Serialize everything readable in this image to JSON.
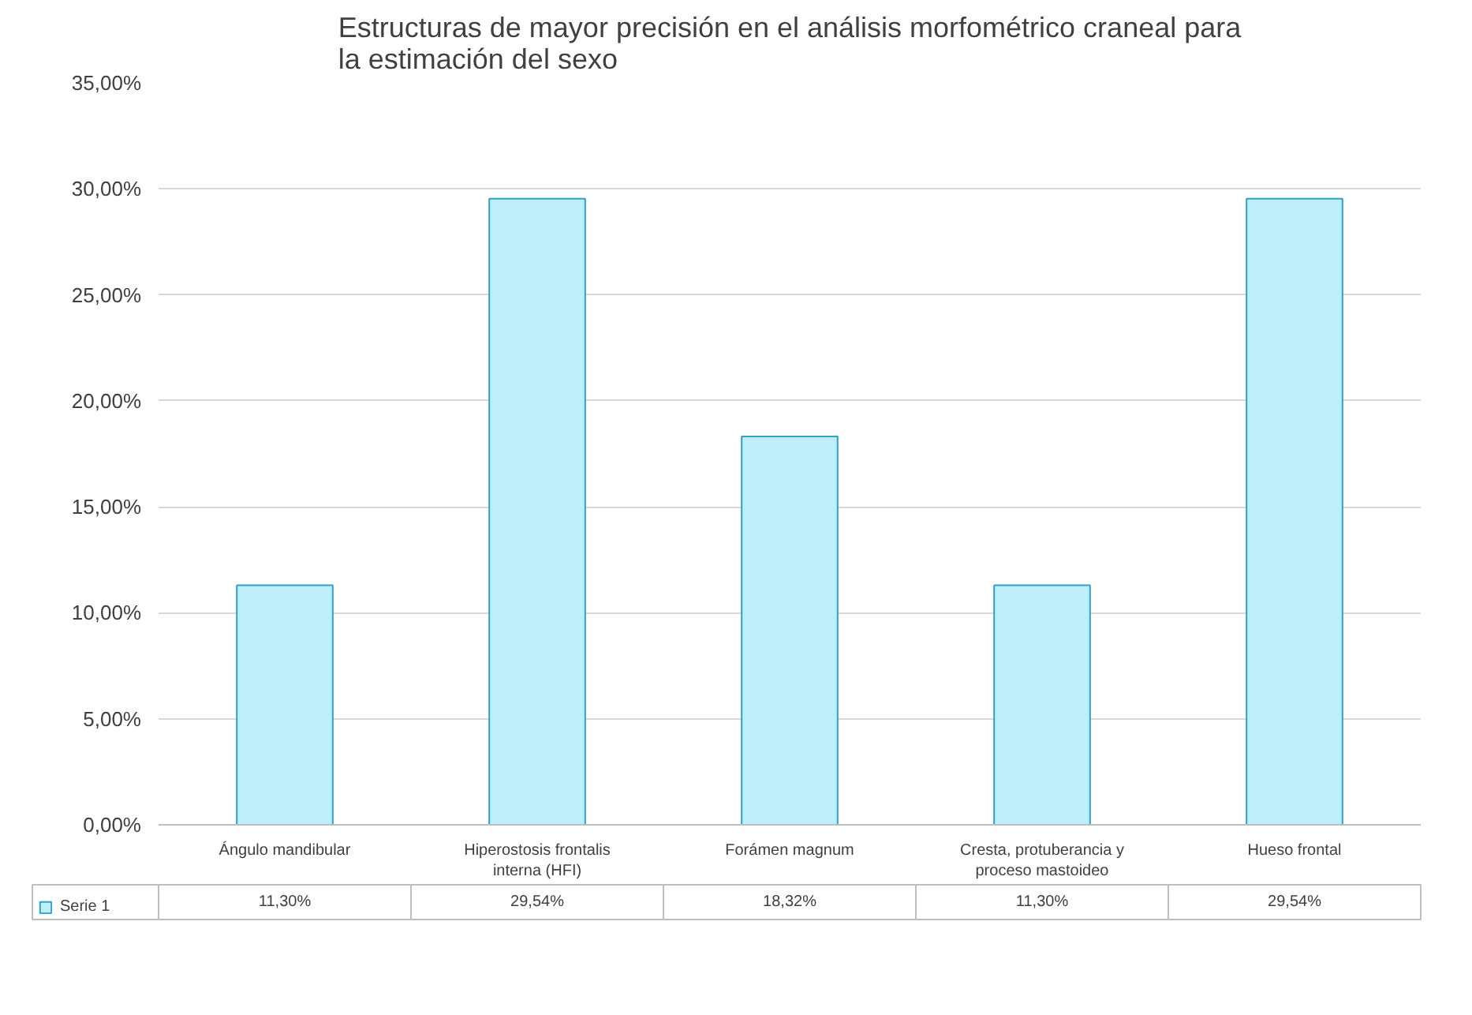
{
  "chart_data": {
    "type": "bar",
    "title": "Estructuras de mayor precisión en el análisis morfométrico craneal para\nla estimación del sexo",
    "categories": [
      "Ángulo mandibular",
      "Hiperostosis frontalis\ninterna (HFI)",
      "Forámen magnum",
      "Cresta, protuberancia y\nproceso mastoideo",
      "Hueso frontal"
    ],
    "series": [
      {
        "name": "Serie 1",
        "color": "#bdeefa",
        "values": [
          11.3,
          29.54,
          18.32,
          11.3,
          29.54
        ],
        "value_labels": [
          "11,30%",
          "29,54%",
          "18,32%",
          "11,30%",
          "29,54%"
        ]
      }
    ],
    "ylim": [
      0,
      35
    ],
    "yticks": [
      {
        "value": 0,
        "label": "0,00%"
      },
      {
        "value": 5,
        "label": "5,00%"
      },
      {
        "value": 10,
        "label": "10,00%"
      },
      {
        "value": 15,
        "label": "15,00%"
      },
      {
        "value": 20,
        "label": "20,00%"
      },
      {
        "value": 25,
        "label": "25,00%"
      },
      {
        "value": 30,
        "label": "30,00%"
      },
      {
        "value": 35,
        "label": "35,00%"
      }
    ],
    "grid": "y"
  }
}
